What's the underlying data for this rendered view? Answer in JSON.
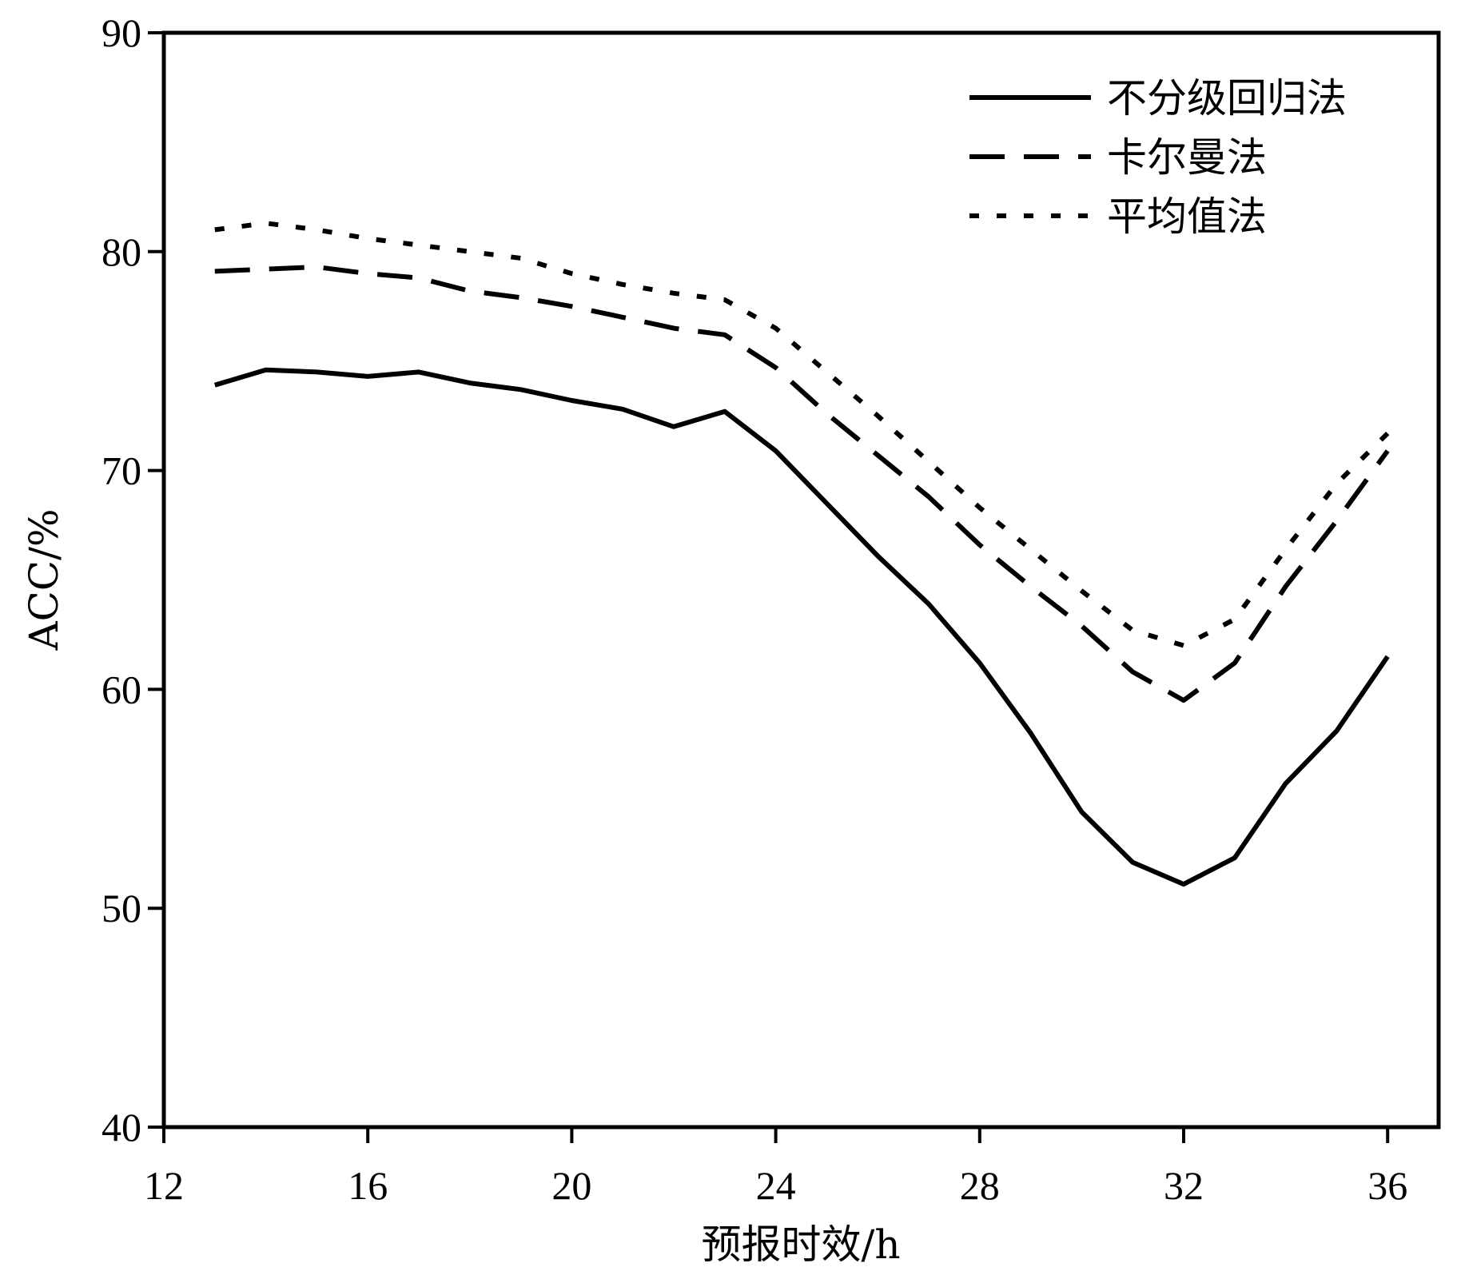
{
  "chart_data": {
    "type": "line",
    "xlabel": "预报时效/h",
    "ylabel": "ACC/%",
    "xlim": [
      12,
      37
    ],
    "ylim": [
      40,
      90
    ],
    "xticks": [
      12,
      16,
      20,
      24,
      28,
      32,
      36
    ],
    "yticks": [
      40,
      50,
      60,
      70,
      80,
      90
    ],
    "grid": false,
    "legend_position": "top-right",
    "x": [
      13,
      14,
      15,
      16,
      17,
      18,
      19,
      20,
      21,
      22,
      23,
      24,
      25,
      26,
      27,
      28,
      29,
      30,
      31,
      32,
      33,
      34,
      35,
      36
    ],
    "series": [
      {
        "name": "不分级回归法",
        "line_style": "solid",
        "color": "#000000",
        "values": [
          73.9,
          74.6,
          74.5,
          74.3,
          74.5,
          74.0,
          73.7,
          73.2,
          72.8,
          72.0,
          72.7,
          70.9,
          68.5,
          66.1,
          63.9,
          61.2,
          58.0,
          54.4,
          52.1,
          51.1,
          52.3,
          55.7,
          58.1,
          61.5
        ]
      },
      {
        "name": "卡尔曼法",
        "line_style": "dashed",
        "color": "#000000",
        "values": [
          79.1,
          79.2,
          79.3,
          79.0,
          78.8,
          78.2,
          77.9,
          77.5,
          77.0,
          76.5,
          76.2,
          74.7,
          72.6,
          70.7,
          68.8,
          66.6,
          64.7,
          62.9,
          60.8,
          59.5,
          61.2,
          64.7,
          67.7,
          70.9
        ]
      },
      {
        "name": "平均值法",
        "line_style": "dotted",
        "color": "#000000",
        "values": [
          81.0,
          81.3,
          81.0,
          80.6,
          80.3,
          80.0,
          79.7,
          79.0,
          78.5,
          78.1,
          77.8,
          76.5,
          74.5,
          72.5,
          70.4,
          68.3,
          66.4,
          64.5,
          62.7,
          62.0,
          63.2,
          66.4,
          69.4,
          71.7
        ]
      }
    ]
  }
}
